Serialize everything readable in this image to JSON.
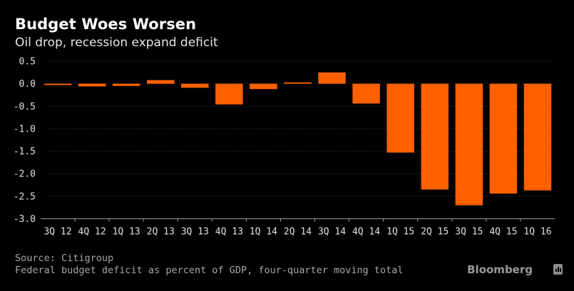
{
  "header": {
    "title": "Budget Woes Worsen",
    "subtitle": "Oil drop, recession expand deficit"
  },
  "footer": {
    "source": "Source: Citigroup",
    "note": "Federal budget deficit as percent of GDP, four-quarter moving total",
    "brand": "Bloomberg",
    "brand_icon": "bloomberg-chart-icon"
  },
  "colors": {
    "background": "#000000",
    "bar": "#ff6000",
    "grid": "#3a3a3a",
    "axis": "#9a9a9a"
  },
  "chart_data": {
    "type": "bar",
    "title": "Budget Woes Worsen",
    "subtitle": "Oil drop, recession expand deficit",
    "xlabel": "",
    "ylabel": "",
    "ylim": [
      -3.0,
      0.5
    ],
    "yticks": [
      0.5,
      0.0,
      -0.5,
      -1.0,
      -1.5,
      -2.0,
      -2.5,
      -3.0
    ],
    "ytick_labels": [
      "0.5",
      "0.0",
      "-0.5",
      "-1.0",
      "-1.5",
      "-2.0",
      "-2.5",
      "-3.0"
    ],
    "grid": true,
    "categories": [
      "3Q 12",
      "4Q 12",
      "1Q 13",
      "2Q 13",
      "3Q 13",
      "4Q 13",
      "1Q 14",
      "2Q 14",
      "3Q 14",
      "4Q 14",
      "1Q 15",
      "2Q 15",
      "3Q 15",
      "4Q 15",
      "1Q 16"
    ],
    "values": [
      -0.03,
      -0.06,
      -0.05,
      0.08,
      -0.09,
      -0.46,
      -0.12,
      0.03,
      0.25,
      -0.44,
      -1.53,
      -2.35,
      -2.7,
      -2.44,
      -2.37
    ]
  }
}
